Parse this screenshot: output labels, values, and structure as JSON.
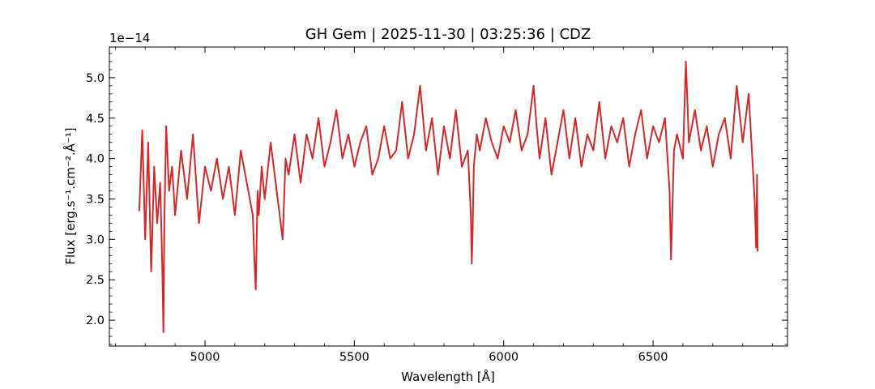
{
  "chart_data": {
    "type": "line",
    "title": "GH Gem | 2025-11-30 | 03:25:36 | CDZ",
    "xlabel": "Wavelength [Å]",
    "ylabel": "Flux [erg.s⁻¹.cm⁻².Å⁻¹]",
    "y_offset_label": "1e−14",
    "y_scale_factor": 1e-14,
    "xlim": [
      4680,
      6950
    ],
    "ylim": [
      1.68,
      5.38
    ],
    "xticks": [
      5000,
      5500,
      6000,
      6500
    ],
    "xtick_labels": [
      "5000",
      "5500",
      "6000",
      "6500"
    ],
    "yticks": [
      2.0,
      2.5,
      3.0,
      3.5,
      4.0,
      4.5,
      5.0
    ],
    "ytick_labels": [
      "2.0",
      "2.5",
      "3.0",
      "3.5",
      "4.0",
      "4.5",
      "5.0"
    ],
    "grid": false,
    "line_color": "#d62728",
    "series": [
      {
        "x": [
          4780,
          4790,
          4800,
          4810,
          4820,
          4830,
          4840,
          4850,
          4855,
          4858,
          4861,
          4864,
          4870,
          4880,
          4890,
          4900,
          4920,
          4940,
          4960,
          4980,
          5000,
          5020,
          5040,
          5060,
          5080,
          5100,
          5120,
          5140,
          5160,
          5165,
          5170,
          5173,
          5176,
          5180,
          5190,
          5200,
          5220,
          5240,
          5260,
          5270,
          5280,
          5300,
          5320,
          5340,
          5360,
          5380,
          5400,
          5420,
          5440,
          5460,
          5480,
          5500,
          5520,
          5540,
          5560,
          5580,
          5600,
          5620,
          5640,
          5660,
          5680,
          5700,
          5720,
          5740,
          5760,
          5780,
          5800,
          5820,
          5840,
          5860,
          5880,
          5890,
          5893,
          5896,
          5900,
          5910,
          5920,
          5940,
          5960,
          5980,
          6000,
          6020,
          6040,
          6060,
          6080,
          6100,
          6110,
          6120,
          6140,
          6160,
          6180,
          6200,
          6220,
          6240,
          6260,
          6280,
          6300,
          6320,
          6340,
          6360,
          6380,
          6400,
          6420,
          6440,
          6460,
          6480,
          6500,
          6520,
          6540,
          6555,
          6560,
          6565,
          6570,
          6580,
          6600,
          6610,
          6620,
          6640,
          6660,
          6680,
          6700,
          6720,
          6740,
          6760,
          6780,
          6800,
          6820,
          6840,
          6845,
          6848,
          6850
        ],
        "y": [
          3.35,
          4.35,
          3.0,
          4.2,
          2.6,
          3.9,
          3.2,
          3.7,
          3.0,
          2.5,
          1.85,
          3.2,
          4.4,
          3.6,
          3.9,
          3.3,
          4.1,
          3.5,
          4.3,
          3.2,
          3.9,
          3.6,
          4.0,
          3.5,
          3.9,
          3.3,
          4.1,
          3.7,
          3.3,
          2.8,
          2.38,
          3.0,
          3.6,
          3.3,
          3.9,
          3.5,
          4.2,
          3.6,
          3.0,
          4.0,
          3.8,
          4.3,
          3.7,
          4.3,
          4.0,
          4.5,
          3.9,
          4.2,
          4.6,
          4.0,
          4.3,
          3.9,
          4.2,
          4.4,
          3.8,
          4.0,
          4.4,
          4.0,
          4.1,
          4.7,
          4.0,
          4.3,
          4.9,
          4.1,
          4.5,
          3.8,
          4.4,
          4.0,
          4.6,
          3.9,
          4.1,
          3.3,
          2.7,
          3.1,
          3.9,
          4.3,
          4.1,
          4.5,
          4.2,
          4.0,
          4.4,
          4.2,
          4.6,
          4.1,
          4.3,
          4.9,
          4.4,
          4.0,
          4.5,
          3.8,
          4.2,
          4.6,
          4.0,
          4.5,
          3.9,
          4.3,
          4.1,
          4.7,
          4.0,
          4.4,
          4.2,
          4.5,
          3.9,
          4.3,
          4.6,
          4.0,
          4.4,
          4.2,
          4.5,
          3.6,
          2.75,
          3.4,
          4.1,
          4.3,
          4.0,
          5.2,
          4.2,
          4.6,
          4.1,
          4.4,
          3.9,
          4.3,
          4.5,
          4.0,
          4.9,
          4.2,
          4.8,
          3.5,
          2.9,
          3.8,
          2.85
        ]
      }
    ]
  }
}
